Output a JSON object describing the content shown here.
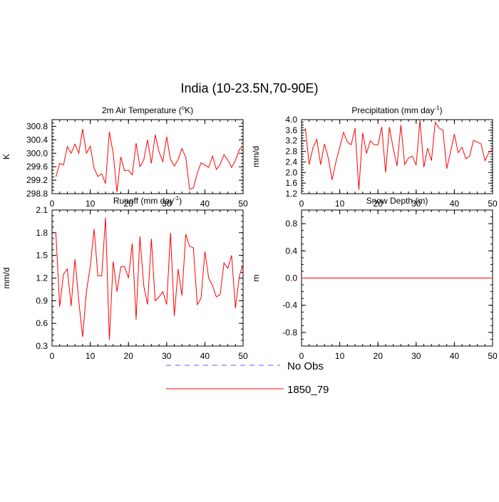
{
  "figure": {
    "title": "India (10-23.5N,70-90E)"
  },
  "legend": {
    "entries": [
      {
        "label": "No Obs",
        "color": "#5a5aff",
        "style": "dashed"
      },
      {
        "label": "1850_79",
        "color": "#ff0000",
        "style": "solid"
      }
    ]
  },
  "chart_data": [
    {
      "type": "line",
      "title": "2m Air Temperature (°K)",
      "title_main": "2m Air Temperature (",
      "title_sup": "o",
      "title_end": "K)",
      "ylabel": "K",
      "xlabel": "",
      "xlim": [
        0,
        50
      ],
      "ylim": [
        298.8,
        301.0
      ],
      "yticks": [
        298.8,
        299.2,
        299.6,
        300.0,
        300.4,
        300.8
      ],
      "ytick_labels": [
        "298.8",
        "299.2",
        "299.6",
        "300.0",
        "300.4",
        "300.8"
      ],
      "xticks": [
        0,
        10,
        20,
        30,
        40,
        50
      ],
      "xtick_labels": [
        "0",
        "10",
        "20",
        "30",
        "40",
        "50"
      ],
      "series": [
        {
          "name": "1850_79",
          "color": "#ff0000",
          "x": [
            1,
            2,
            3,
            4,
            5,
            6,
            7,
            8,
            9,
            10,
            11,
            12,
            13,
            14,
            15,
            16,
            17,
            18,
            19,
            20,
            21,
            22,
            23,
            24,
            25,
            26,
            27,
            28,
            29,
            30,
            31,
            32,
            33,
            34,
            35,
            36,
            37,
            38,
            39,
            40,
            41,
            42,
            43,
            44,
            45,
            46,
            47,
            48,
            49,
            50
          ],
          "y": [
            299.3,
            299.7,
            299.65,
            300.2,
            300.0,
            300.27,
            300.0,
            300.72,
            300.0,
            300.21,
            299.56,
            299.31,
            299.39,
            299.1,
            300.64,
            300.0,
            298.85,
            299.89,
            299.48,
            299.5,
            299.36,
            300.3,
            299.6,
            299.8,
            300.4,
            299.7,
            300.55,
            300.05,
            299.75,
            300.49,
            299.82,
            299.62,
            299.82,
            300.14,
            299.88,
            298.93,
            298.97,
            299.4,
            299.72,
            299.65,
            299.58,
            299.92,
            299.52,
            299.67,
            299.96,
            299.8,
            299.58,
            299.79,
            300.11,
            300.22
          ]
        }
      ]
    },
    {
      "type": "line",
      "title": "Precipitation (mm day-1)",
      "title_main": "Precipitation (mm day",
      "title_sup": "-1",
      "title_end": ")",
      "ylabel": "mm/d",
      "xlabel": "",
      "xlim": [
        0,
        50
      ],
      "ylim": [
        1.2,
        4.0
      ],
      "yticks": [
        1.2,
        1.6,
        2.0,
        2.4,
        2.8,
        3.2,
        3.6,
        4.0
      ],
      "ytick_labels": [
        "1.2",
        "1.6",
        "2.0",
        "2.4",
        "2.8",
        "3.2",
        "3.6",
        "4.0"
      ],
      "xticks": [
        0,
        10,
        20,
        30,
        40,
        50
      ],
      "xtick_labels": [
        "0",
        "10",
        "20",
        "30",
        "40",
        "50"
      ],
      "series": [
        {
          "name": "1850_79",
          "color": "#ff0000",
          "x": [
            1,
            2,
            3,
            4,
            5,
            6,
            7,
            8,
            9,
            10,
            11,
            12,
            13,
            14,
            15,
            16,
            17,
            18,
            19,
            20,
            21,
            22,
            23,
            24,
            25,
            26,
            27,
            28,
            29,
            30,
            31,
            32,
            33,
            34,
            35,
            36,
            37,
            38,
            39,
            40,
            41,
            42,
            43,
            44,
            45,
            46,
            47,
            48,
            49,
            50
          ],
          "y": [
            3.68,
            2.3,
            2.95,
            3.25,
            2.3,
            3.08,
            2.55,
            1.72,
            2.4,
            2.95,
            3.52,
            3.15,
            3.05,
            3.68,
            1.35,
            3.5,
            2.72,
            3.2,
            3.05,
            3.05,
            3.72,
            2.0,
            3.72,
            2.9,
            2.25,
            3.8,
            2.3,
            2.55,
            2.62,
            2.28,
            3.98,
            2.2,
            2.92,
            2.45,
            3.9,
            3.68,
            3.6,
            2.15,
            2.78,
            3.45,
            2.75,
            2.95,
            2.52,
            2.62,
            3.22,
            3.15,
            3.08,
            2.45,
            2.75,
            2.85
          ]
        }
      ]
    },
    {
      "type": "line",
      "title": "Runoff (mm day-1)",
      "title_main": "Runoff (mm day",
      "title_sup": "-1",
      "title_end": ")",
      "ylabel": "mm/d",
      "xlabel": "",
      "xlim": [
        0,
        50
      ],
      "ylim": [
        0.3,
        2.1
      ],
      "yticks": [
        0.3,
        0.6,
        0.9,
        1.2,
        1.5,
        1.8,
        2.1
      ],
      "ytick_labels": [
        "0.3",
        "0.6",
        "0.9",
        "1.2",
        "1.5",
        "1.8",
        "2.1"
      ],
      "xticks": [
        0,
        10,
        20,
        30,
        40,
        50
      ],
      "xtick_labels": [
        "0",
        "10",
        "20",
        "30",
        "40",
        "50"
      ],
      "series": [
        {
          "name": "1850_79",
          "color": "#ff0000",
          "x": [
            1,
            2,
            3,
            4,
            5,
            6,
            7,
            8,
            9,
            10,
            11,
            12,
            13,
            14,
            15,
            16,
            17,
            18,
            19,
            20,
            21,
            22,
            23,
            24,
            25,
            26,
            27,
            28,
            29,
            30,
            31,
            32,
            33,
            34,
            35,
            36,
            37,
            38,
            39,
            40,
            41,
            42,
            43,
            44,
            45,
            46,
            47,
            48,
            49,
            50
          ],
          "y": [
            1.8,
            0.82,
            1.25,
            1.32,
            0.83,
            1.45,
            0.9,
            0.42,
            1.02,
            1.35,
            1.85,
            1.23,
            1.23,
            2.0,
            0.38,
            1.42,
            1.02,
            1.35,
            1.35,
            1.2,
            1.66,
            0.65,
            1.75,
            1.1,
            0.85,
            1.72,
            0.9,
            0.95,
            1.02,
            0.85,
            1.8,
            0.7,
            1.32,
            0.97,
            1.78,
            1.62,
            1.6,
            0.85,
            0.93,
            1.55,
            1.2,
            1.1,
            0.95,
            0.98,
            1.4,
            1.33,
            1.5,
            0.8,
            1.22,
            1.38
          ]
        }
      ]
    },
    {
      "type": "line",
      "title": "Snow Depth (m)",
      "title_main": "Snow Depth (m)",
      "title_sup": "",
      "title_end": "",
      "ylabel": "m",
      "xlabel": "",
      "xlim": [
        0,
        50
      ],
      "ylim": [
        -1.0,
        1.0
      ],
      "yticks": [
        -0.8,
        -0.4,
        0.0,
        0.4,
        0.8
      ],
      "ytick_labels": [
        "-0.8",
        "-0.4",
        "0.0",
        "0.4",
        "0.8"
      ],
      "xticks": [
        0,
        10,
        20,
        30,
        40,
        50
      ],
      "xtick_labels": [
        "0",
        "10",
        "20",
        "30",
        "40",
        "50"
      ],
      "series": [
        {
          "name": "1850_79",
          "color": "#ff0000",
          "x": [
            0,
            50
          ],
          "y": [
            0.0,
            0.0
          ]
        }
      ]
    }
  ]
}
